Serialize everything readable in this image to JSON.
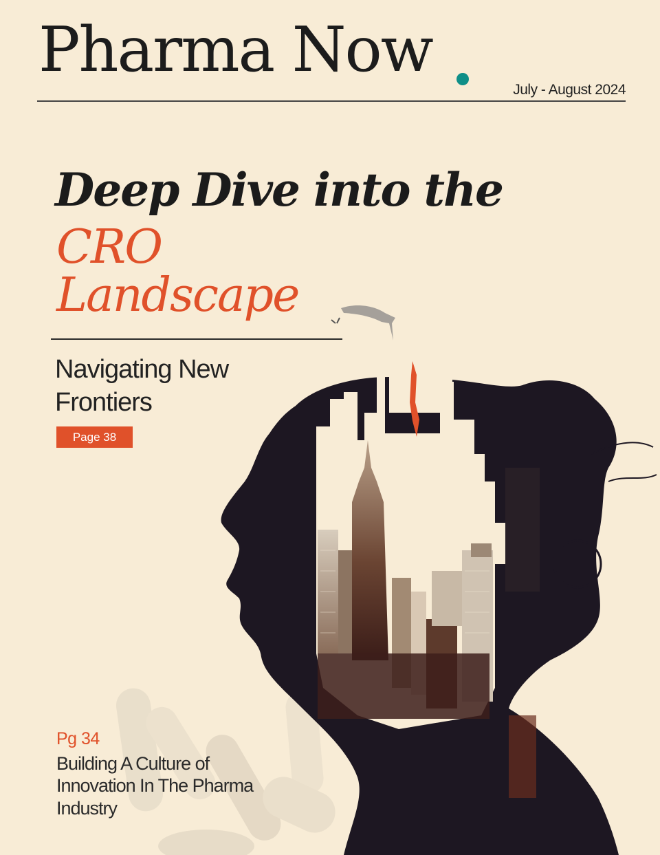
{
  "masthead": {
    "title": "Pharma Now",
    "issue_date": "July - August 2024"
  },
  "cover_story": {
    "headline_line1": "Deep Dive into the",
    "headline_line2": "CRO",
    "headline_line3": "Landscape",
    "subheading": "Navigating New Frontiers",
    "page_label": "Page 38"
  },
  "secondary_story": {
    "page_label": "Pg 34",
    "title": "Building A Culture of Innovation In The Pharma Industry"
  },
  "colors": {
    "background": "#f8ecd6",
    "accent_orange": "#e0512a",
    "accent_teal": "#0f8f88",
    "silhouette": "#1d1722"
  },
  "illustration": {
    "icon": "woman-profile-silhouette-icon",
    "elements": [
      "city-skyline-icon",
      "diving-figure-icon",
      "pill-capsules-icon"
    ]
  }
}
